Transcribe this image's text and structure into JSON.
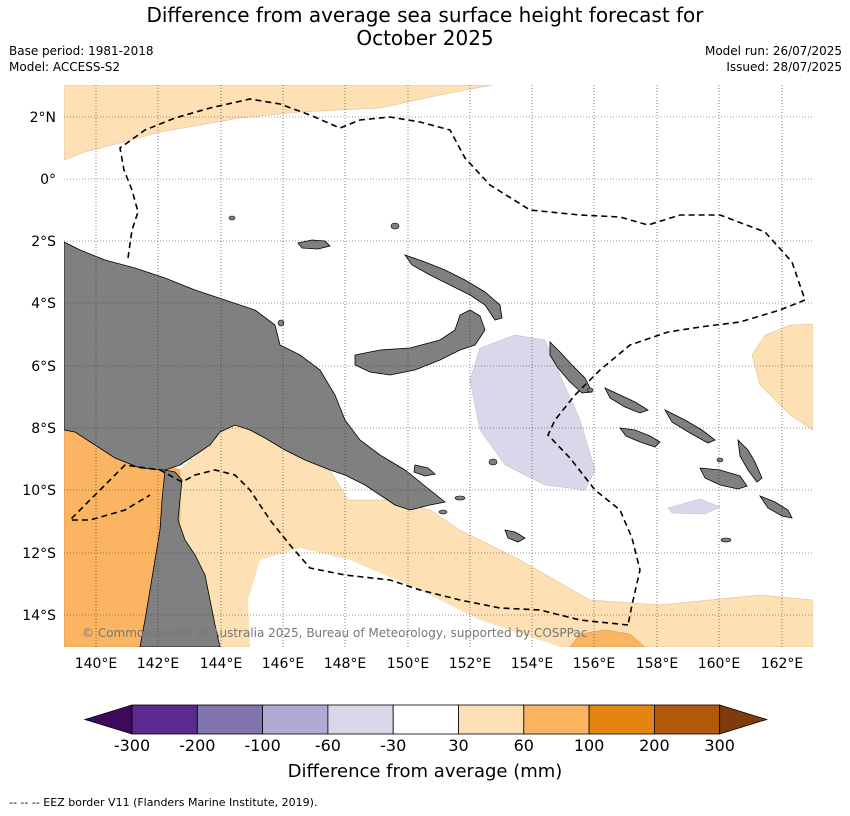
{
  "title_line1": "Difference from average sea surface height forecast for",
  "title_line2": "October 2025",
  "base_period": "Base period: 1981-2018",
  "model": "Model: ACCESS-S2",
  "model_run": "Model run: 26/07/2025",
  "issued": "Issued: 28/07/2025",
  "copyright": "© Commonwealth of Australia 2025, Bureau of Meteorology, supported by COSPPac",
  "footer_legend": "--  --  -- EEZ border V11 (Flanders Marine Institute, 2019).",
  "map": {
    "lat_labels": [
      "2°N",
      "0°",
      "2°S",
      "4°S",
      "6°S",
      "8°S",
      "10°S",
      "12°S",
      "14°S"
    ],
    "lon_labels": [
      "140°E",
      "142°E",
      "144°E",
      "146°E",
      "148°E",
      "150°E",
      "152°E",
      "154°E",
      "156°E",
      "158°E",
      "160°E",
      "162°E"
    ]
  },
  "colorbar": {
    "title": "Difference from average (mm)",
    "ticks": [
      "-300",
      "-200",
      "-100",
      "-60",
      "-30",
      "30",
      "60",
      "100",
      "200",
      "300"
    ],
    "colors": [
      "#3f0a5e",
      "#5b2a8e",
      "#8173ae",
      "#b1a9d2",
      "#d8d8ea",
      "#ffffff",
      "#fde0b3",
      "#fbb461",
      "#e3850f",
      "#b3590a",
      "#7f3c0a"
    ]
  },
  "colors": {
    "land": "#808080",
    "ocean": "#ffffff",
    "positive_light": "#fde0b3",
    "positive_mid": "#fbb461",
    "positive_strong": "#e3850f",
    "negative_light": "#d8d8ea"
  }
}
